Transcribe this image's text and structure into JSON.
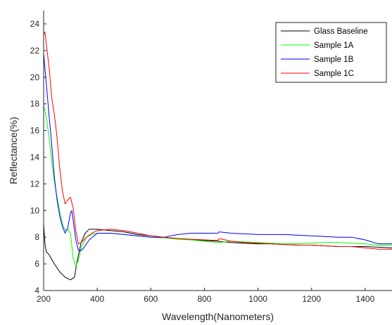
{
  "chart_data": {
    "type": "line",
    "title": "",
    "xlabel": "Wavelength(Nanometers)",
    "ylabel": "Reflectance(%)",
    "xlim": [
      200,
      1500
    ],
    "ylim": [
      4,
      25
    ],
    "xticks": [
      200,
      400,
      600,
      800,
      1000,
      1200,
      1400
    ],
    "yticks": [
      4,
      6,
      8,
      10,
      12,
      14,
      16,
      18,
      20,
      22,
      24
    ],
    "grid": false,
    "legend_position": "top-right",
    "series": [
      {
        "name": "Glass Baseline",
        "color": "#000000",
        "points": [
          [
            200,
            9.0
          ],
          [
            205,
            7.5
          ],
          [
            210,
            6.9
          ],
          [
            220,
            6.7
          ],
          [
            240,
            6.0
          ],
          [
            260,
            5.4
          ],
          [
            280,
            5.0
          ],
          [
            300,
            4.8
          ],
          [
            315,
            5.0
          ],
          [
            325,
            6.2
          ],
          [
            340,
            7.6
          ],
          [
            355,
            8.3
          ],
          [
            370,
            8.6
          ],
          [
            400,
            8.6
          ],
          [
            450,
            8.5
          ],
          [
            500,
            8.4
          ],
          [
            550,
            8.2
          ],
          [
            600,
            8.1
          ],
          [
            650,
            8.0
          ],
          [
            700,
            7.9
          ],
          [
            750,
            7.8
          ],
          [
            800,
            7.75
          ],
          [
            850,
            7.7
          ],
          [
            900,
            7.6
          ],
          [
            950,
            7.55
          ],
          [
            1000,
            7.5
          ],
          [
            1050,
            7.5
          ],
          [
            1100,
            7.45
          ],
          [
            1150,
            7.4
          ],
          [
            1200,
            7.4
          ],
          [
            1250,
            7.35
          ],
          [
            1300,
            7.3
          ],
          [
            1350,
            7.3
          ],
          [
            1400,
            7.3
          ],
          [
            1450,
            7.25
          ],
          [
            1500,
            7.2
          ]
        ]
      },
      {
        "name": "Sample 1A",
        "color": "#00ff00",
        "points": [
          [
            200,
            17.9
          ],
          [
            210,
            17.0
          ],
          [
            220,
            15.5
          ],
          [
            230,
            13.8
          ],
          [
            240,
            12.2
          ],
          [
            250,
            11.0
          ],
          [
            260,
            9.9
          ],
          [
            270,
            9.0
          ],
          [
            280,
            8.5
          ],
          [
            290,
            8.6
          ],
          [
            300,
            8.3
          ],
          [
            310,
            6.5
          ],
          [
            320,
            5.8
          ],
          [
            330,
            6.3
          ],
          [
            340,
            7.2
          ],
          [
            360,
            8.0
          ],
          [
            380,
            8.2
          ],
          [
            400,
            8.3
          ],
          [
            450,
            8.3
          ],
          [
            500,
            8.2
          ],
          [
            550,
            8.1
          ],
          [
            600,
            8.0
          ],
          [
            650,
            7.95
          ],
          [
            700,
            7.85
          ],
          [
            750,
            7.8
          ],
          [
            800,
            7.7
          ],
          [
            850,
            7.6
          ],
          [
            900,
            7.7
          ],
          [
            950,
            7.65
          ],
          [
            1000,
            7.6
          ],
          [
            1050,
            7.55
          ],
          [
            1100,
            7.5
          ],
          [
            1150,
            7.5
          ],
          [
            1200,
            7.55
          ],
          [
            1250,
            7.6
          ],
          [
            1300,
            7.6
          ],
          [
            1350,
            7.55
          ],
          [
            1400,
            7.5
          ],
          [
            1450,
            7.4
          ],
          [
            1500,
            7.4
          ]
        ]
      },
      {
        "name": "Sample 1B",
        "color": "#0000ff",
        "points": [
          [
            200,
            21.8
          ],
          [
            210,
            19.5
          ],
          [
            220,
            17.2
          ],
          [
            230,
            15.0
          ],
          [
            240,
            12.5
          ],
          [
            250,
            10.8
          ],
          [
            260,
            9.6
          ],
          [
            270,
            8.8
          ],
          [
            280,
            8.3
          ],
          [
            290,
            8.7
          ],
          [
            300,
            9.8
          ],
          [
            305,
            10.0
          ],
          [
            310,
            9.3
          ],
          [
            320,
            7.8
          ],
          [
            330,
            7.0
          ],
          [
            340,
            7.0
          ],
          [
            350,
            7.2
          ],
          [
            370,
            7.8
          ],
          [
            400,
            8.3
          ],
          [
            450,
            8.3
          ],
          [
            500,
            8.2
          ],
          [
            550,
            8.1
          ],
          [
            600,
            8.0
          ],
          [
            650,
            8.0
          ],
          [
            700,
            8.2
          ],
          [
            750,
            8.3
          ],
          [
            800,
            8.3
          ],
          [
            850,
            8.3
          ],
          [
            855,
            8.4
          ],
          [
            900,
            8.3
          ],
          [
            950,
            8.25
          ],
          [
            1000,
            8.2
          ],
          [
            1050,
            8.2
          ],
          [
            1100,
            8.2
          ],
          [
            1150,
            8.15
          ],
          [
            1200,
            8.1
          ],
          [
            1250,
            8.05
          ],
          [
            1300,
            8.0
          ],
          [
            1350,
            8.0
          ],
          [
            1400,
            7.8
          ],
          [
            1450,
            7.5
          ],
          [
            1500,
            7.5
          ]
        ]
      },
      {
        "name": "Sample 1C",
        "color": "#ff0000",
        "points": [
          [
            200,
            23.2
          ],
          [
            205,
            23.4
          ],
          [
            210,
            22.5
          ],
          [
            220,
            20.8
          ],
          [
            230,
            18.5
          ],
          [
            240,
            17.2
          ],
          [
            250,
            15.5
          ],
          [
            260,
            13.2
          ],
          [
            270,
            11.5
          ],
          [
            280,
            10.5
          ],
          [
            290,
            10.8
          ],
          [
            300,
            11.0
          ],
          [
            310,
            10.2
          ],
          [
            320,
            8.5
          ],
          [
            330,
            7.5
          ],
          [
            340,
            7.6
          ],
          [
            360,
            8.0
          ],
          [
            380,
            8.3
          ],
          [
            400,
            8.5
          ],
          [
            450,
            8.6
          ],
          [
            500,
            8.5
          ],
          [
            550,
            8.3
          ],
          [
            600,
            8.1
          ],
          [
            650,
            8.0
          ],
          [
            700,
            7.9
          ],
          [
            750,
            7.85
          ],
          [
            800,
            7.8
          ],
          [
            850,
            7.75
          ],
          [
            855,
            7.9
          ],
          [
            900,
            7.7
          ],
          [
            950,
            7.6
          ],
          [
            1000,
            7.55
          ],
          [
            1050,
            7.5
          ],
          [
            1100,
            7.45
          ],
          [
            1150,
            7.4
          ],
          [
            1200,
            7.4
          ],
          [
            1250,
            7.35
          ],
          [
            1300,
            7.3
          ],
          [
            1350,
            7.3
          ],
          [
            1400,
            7.2
          ],
          [
            1450,
            7.1
          ],
          [
            1500,
            7.1
          ]
        ]
      }
    ]
  }
}
